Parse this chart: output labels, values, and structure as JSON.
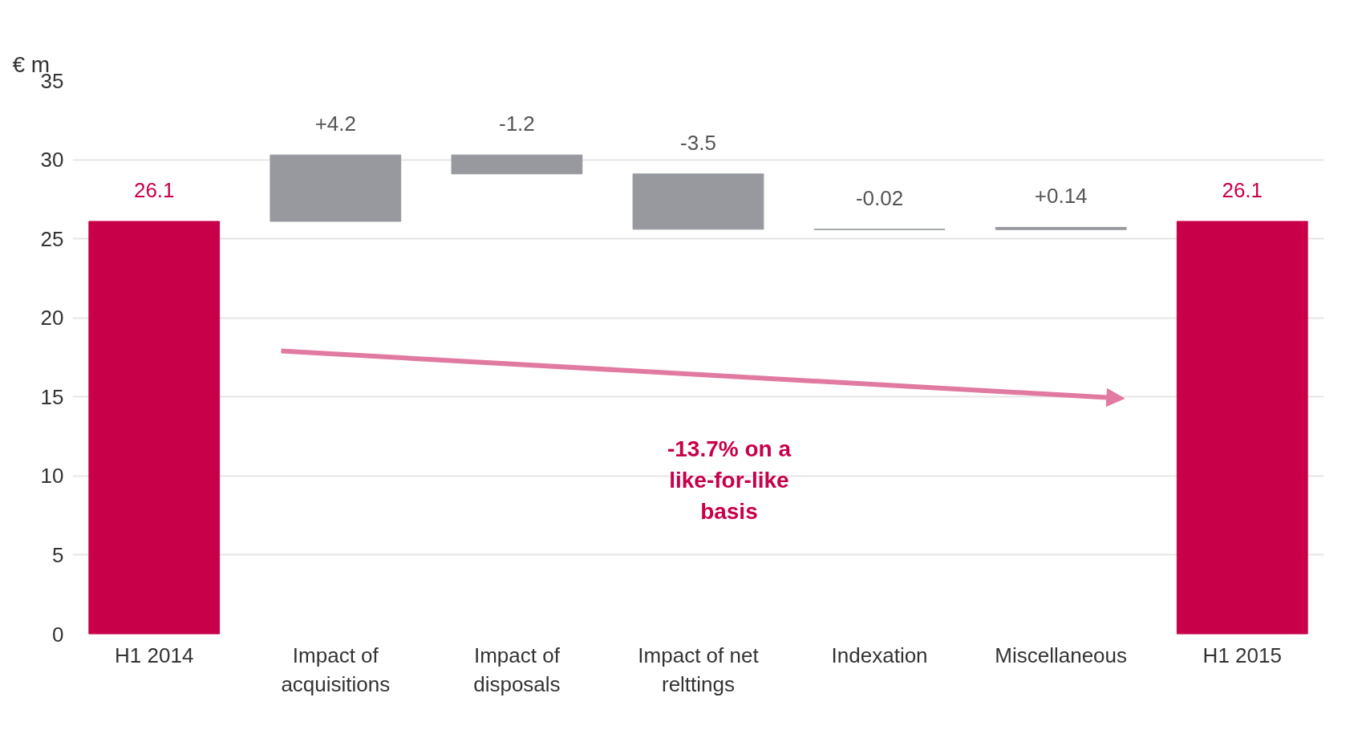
{
  "chart_data": {
    "type": "bar",
    "ylabel": "€ m",
    "categories": [
      "H1 2014",
      "Impact of\nacquisitions",
      "Impact of\ndisposals",
      "Impact of net\nrelttings",
      "Indexation",
      "Miscellaneous",
      "H1 2015"
    ],
    "values": [
      26.1,
      4.2,
      -1.2,
      -3.5,
      -0.02,
      0.14,
      26.1
    ],
    "base": [
      0,
      26.1,
      30.3,
      29.1,
      25.6,
      25.58,
      0
    ],
    "colors": [
      "#c8004a",
      "#97999e",
      "#97999e",
      "#97999e",
      "#97999e",
      "#97999e",
      "#c8004a"
    ],
    "value_labels": [
      "26.1",
      "+4.2",
      "-1.2",
      "-3.5",
      "-0.02",
      "+0.14",
      "26.1"
    ],
    "ylim": [
      0,
      35
    ],
    "yticks": [
      0,
      5,
      10,
      15,
      20,
      25,
      30,
      35
    ],
    "grid": "y",
    "annotations": [
      "-13.7% on a like-for-like basis"
    ]
  }
}
